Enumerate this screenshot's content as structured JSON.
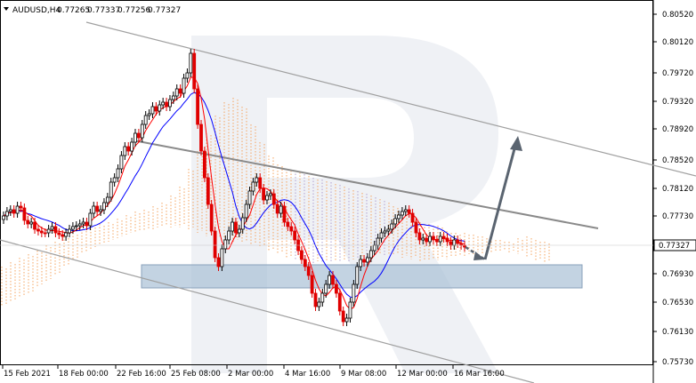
{
  "header": {
    "dropdown_icon": "triangle-down-icon",
    "symbol_timeframe": "AUDUSD,H4",
    "ohlc": [
      "0.77265",
      "0.77337",
      "0.77256",
      "0.77327"
    ]
  },
  "watermark": {
    "icon": "broker-logo-R"
  },
  "price_axis": {
    "ticks": [
      "0.80520",
      "0.80120",
      "0.79720",
      "0.79320",
      "0.78920",
      "0.78520",
      "0.78120",
      "0.77730",
      "0.77330",
      "0.76930",
      "0.76530",
      "0.76130",
      "0.75730"
    ],
    "current_price": "0.77327",
    "range": [
      0.7553,
      0.807
    ]
  },
  "time_axis": {
    "ticks": [
      "15 Feb 2021",
      "18 Feb 00:00",
      "22 Feb 16:00",
      "25 Feb 08:00",
      "2 Mar 00:00",
      "4 Mar 16:00",
      "9 Mar 08:00",
      "12 Mar 00:00",
      "16 Mar 16:00"
    ]
  },
  "colors": {
    "bull": "#000000",
    "bear": "#e00000",
    "tenkan": "#ff0000",
    "kijun": "#0000ff",
    "cloud": "#f4a460",
    "senkou_b_cloud": "#b0a0d0",
    "channel": "#a0a0a0",
    "zone": "#a9c0d6",
    "forecast": "#5a6470"
  }
}
